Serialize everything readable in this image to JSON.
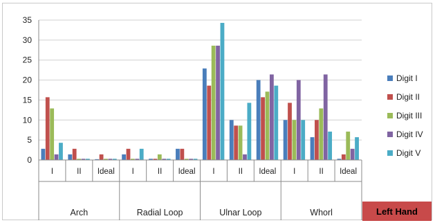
{
  "chart_data": {
    "type": "bar",
    "title": "",
    "xlabel": "",
    "ylabel": "",
    "ylim": [
      0,
      35
    ],
    "yticks": [
      0,
      5,
      10,
      15,
      20,
      25,
      30,
      35
    ],
    "grid": true,
    "legend_position": "right",
    "groups": [
      "Arch",
      "Radial Loop",
      "Ulnar Loop",
      "Whorl"
    ],
    "categories": [
      "I",
      "II",
      "Ideal",
      "I",
      "II",
      "Ideal",
      "I",
      "II",
      "Ideal",
      "I",
      "II",
      "Ideal"
    ],
    "series": [
      {
        "name": "Digit I",
        "color": "#4a7ebb",
        "values": [
          2.8,
          1.4,
          0.2,
          1.4,
          0.3,
          2.8,
          22.9,
          10.0,
          20.0,
          10.0,
          5.7,
          0.3
        ]
      },
      {
        "name": "Digit II",
        "color": "#c0504d",
        "values": [
          15.7,
          2.8,
          1.4,
          2.8,
          0.3,
          2.8,
          18.6,
          8.6,
          15.7,
          14.3,
          10.0,
          1.4
        ]
      },
      {
        "name": "Digit III",
        "color": "#9bbb59",
        "values": [
          12.9,
          0.3,
          0.3,
          0.3,
          1.4,
          0.3,
          28.6,
          8.6,
          17.1,
          10.0,
          12.9,
          7.1
        ]
      },
      {
        "name": "Digit IV",
        "color": "#8064a2",
        "values": [
          1.4,
          0.3,
          0.3,
          0.3,
          0.3,
          0.3,
          28.6,
          1.4,
          21.4,
          20.0,
          21.4,
          2.8
        ]
      },
      {
        "name": "Digit V",
        "color": "#4bacc6",
        "values": [
          4.3,
          0.3,
          0.3,
          2.8,
          0.3,
          0.3,
          34.3,
          14.3,
          18.6,
          10.0,
          7.1,
          5.7
        ]
      }
    ]
  },
  "badge": {
    "label": "Left Hand",
    "color": "#c84a4a"
  }
}
